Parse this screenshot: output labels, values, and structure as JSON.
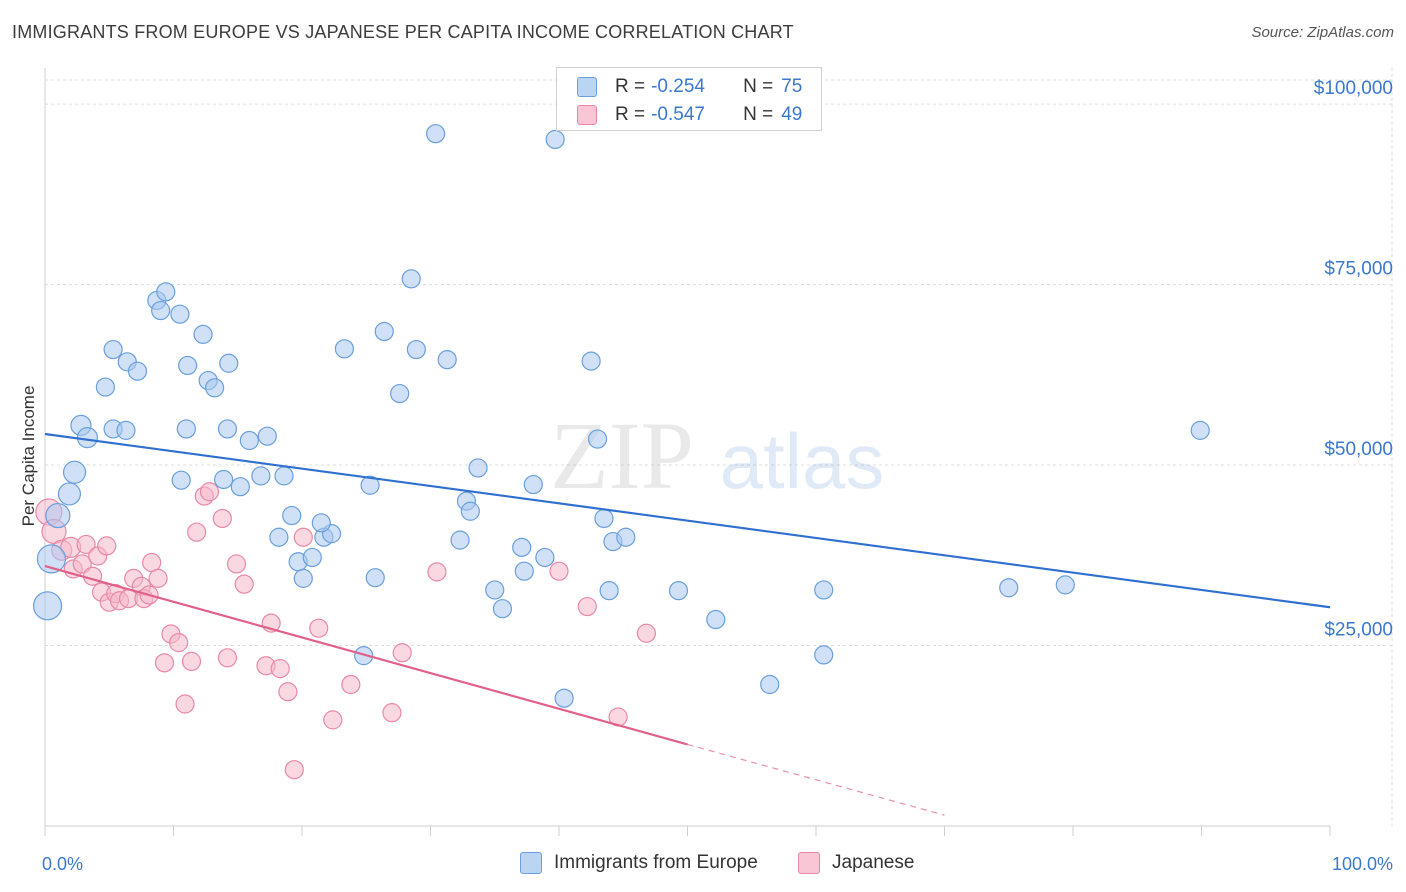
{
  "title": "IMMIGRANTS FROM EUROPE VS JAPANESE PER CAPITA INCOME CORRELATION CHART",
  "source": "Source: ZipAtlas.com",
  "watermark": {
    "zip": "ZIP",
    "atlas": "atlas"
  },
  "legend": {
    "r_label": "R =",
    "n_label": "N =",
    "rows": [
      {
        "r": "-0.254",
        "n": "75"
      },
      {
        "r": "-0.547",
        "n": "49"
      }
    ]
  },
  "colors": {
    "blue_fill": "#a9c8f0",
    "blue_stroke": "#6a9fdc",
    "blue_line": "#2f6fd0",
    "pink_fill": "#f6b8cb",
    "pink_stroke": "#e888a8",
    "pink_line": "#e0608a"
  },
  "chart_data": {
    "type": "scatter",
    "title": "IMMIGRANTS FROM EUROPE VS JAPANESE PER CAPITA INCOME CORRELATION CHART",
    "xlabel": "",
    "ylabel": "Per Capita Income",
    "xlim": [
      0,
      100
    ],
    "ylim": [
      0,
      105000
    ],
    "x_tick_labels": [
      "0.0%",
      "100.0%"
    ],
    "y_ticks": [
      25000,
      50000,
      75000,
      100000
    ],
    "y_tick_labels": [
      "$25,000",
      "$50,000",
      "$75,000",
      "$100,000"
    ],
    "grid": true,
    "legend_position": "top-center",
    "series": [
      {
        "name": "Immigrants from Europe",
        "color": "#6a9fdc",
        "trend": {
          "x": [
            0,
            100
          ],
          "y": [
            54300,
            30300
          ]
        },
        "points": [
          [
            0.2,
            30500,
            14
          ],
          [
            0.5,
            37000,
            14
          ],
          [
            1.0,
            43000,
            12
          ],
          [
            1.9,
            46000,
            11
          ],
          [
            2.3,
            49000,
            11
          ],
          [
            2.8,
            55500,
            10
          ],
          [
            3.3,
            53800,
            10
          ],
          [
            5.3,
            66000,
            9
          ],
          [
            4.7,
            60800,
            9
          ],
          [
            6.4,
            64300,
            9
          ],
          [
            7.2,
            63000,
            9
          ],
          [
            5.3,
            55000,
            9
          ],
          [
            6.3,
            54800,
            9
          ],
          [
            8.7,
            72800,
            9
          ],
          [
            9.4,
            74000,
            9
          ],
          [
            9.0,
            71400,
            9
          ],
          [
            10.5,
            70900,
            9
          ],
          [
            11.1,
            63800,
            9
          ],
          [
            11.0,
            55000,
            9
          ],
          [
            12.3,
            68100,
            9
          ],
          [
            12.7,
            61700,
            9
          ],
          [
            13.2,
            60700,
            9
          ],
          [
            14.2,
            55000,
            9
          ],
          [
            10.6,
            47900,
            9
          ],
          [
            13.9,
            48000,
            9
          ],
          [
            14.3,
            64100,
            9
          ],
          [
            15.2,
            47000,
            9
          ],
          [
            16.8,
            48500,
            9
          ],
          [
            17.3,
            54000,
            9
          ],
          [
            18.6,
            48500,
            9
          ],
          [
            15.9,
            53400,
            9
          ],
          [
            19.2,
            43000,
            9
          ],
          [
            19.7,
            36600,
            9
          ],
          [
            20.8,
            37200,
            9
          ],
          [
            18.2,
            40000,
            9
          ],
          [
            21.7,
            40000,
            9
          ],
          [
            22.3,
            40500,
            9
          ],
          [
            21.5,
            42000,
            9
          ],
          [
            20.1,
            34300,
            9
          ],
          [
            23.3,
            66100,
            9
          ],
          [
            25.3,
            47200,
            9
          ],
          [
            25.7,
            34400,
            9
          ],
          [
            26.4,
            68500,
            9
          ],
          [
            27.6,
            59900,
            9
          ],
          [
            28.5,
            75800,
            9
          ],
          [
            28.9,
            66000,
            9
          ],
          [
            30.4,
            95900,
            9
          ],
          [
            31.3,
            64600,
            9
          ],
          [
            32.3,
            39600,
            9
          ],
          [
            32.8,
            45000,
            9
          ],
          [
            33.1,
            43600,
            9
          ],
          [
            33.7,
            49600,
            9
          ],
          [
            35.0,
            32700,
            9
          ],
          [
            35.6,
            30100,
            9
          ],
          [
            37.1,
            38600,
            9
          ],
          [
            37.3,
            35300,
            9
          ],
          [
            38.0,
            47300,
            9
          ],
          [
            38.9,
            37200,
            9
          ],
          [
            39.7,
            95100,
            9
          ],
          [
            42.5,
            64400,
            9
          ],
          [
            43.0,
            53600,
            9
          ],
          [
            43.5,
            42600,
            9
          ],
          [
            43.9,
            32600,
            9
          ],
          [
            44.2,
            39400,
            9
          ],
          [
            45.2,
            40000,
            9
          ],
          [
            40.4,
            17700,
            9
          ],
          [
            49.3,
            32600,
            9
          ],
          [
            52.2,
            28600,
            9
          ],
          [
            56.4,
            19600,
            9
          ],
          [
            60.6,
            32700,
            9
          ],
          [
            60.6,
            23700,
            9
          ],
          [
            75.0,
            33000,
            9
          ],
          [
            79.4,
            33400,
            9
          ],
          [
            89.9,
            54800,
            9
          ],
          [
            24.8,
            23600,
            9
          ]
        ]
      },
      {
        "name": "Japanese",
        "color": "#e888a8",
        "trend": {
          "x": [
            0,
            50
          ],
          "y": [
            36000,
            11300
          ]
        },
        "trend_dashed": {
          "x": [
            50,
            70
          ],
          "y": [
            11300,
            1500
          ]
        },
        "points": [
          [
            0.3,
            43500,
            13
          ],
          [
            0.7,
            40800,
            12
          ],
          [
            1.3,
            38200,
            10
          ],
          [
            2.0,
            38600,
            10
          ],
          [
            2.2,
            35600,
            9
          ],
          [
            2.9,
            36300,
            9
          ],
          [
            3.2,
            39000,
            9
          ],
          [
            4.1,
            37400,
            9
          ],
          [
            3.7,
            34600,
            9
          ],
          [
            4.8,
            38800,
            9
          ],
          [
            4.4,
            32400,
            9
          ],
          [
            5.0,
            31000,
            9
          ],
          [
            5.5,
            32200,
            9
          ],
          [
            5.8,
            31200,
            9
          ],
          [
            6.5,
            31500,
            9
          ],
          [
            6.9,
            34300,
            9
          ],
          [
            7.5,
            33200,
            9
          ],
          [
            7.7,
            31500,
            9
          ],
          [
            8.1,
            32000,
            9
          ],
          [
            8.3,
            36500,
            9
          ],
          [
            8.8,
            34300,
            9
          ],
          [
            9.3,
            22600,
            9
          ],
          [
            9.8,
            26600,
            9
          ],
          [
            10.4,
            25400,
            9
          ],
          [
            10.9,
            16900,
            9
          ],
          [
            11.4,
            22800,
            9
          ],
          [
            11.8,
            40700,
            9
          ],
          [
            12.4,
            45700,
            9
          ],
          [
            12.8,
            46300,
            9
          ],
          [
            13.8,
            42600,
            9
          ],
          [
            14.2,
            23300,
            9
          ],
          [
            14.9,
            36300,
            9
          ],
          [
            15.5,
            33500,
            9
          ],
          [
            17.2,
            22200,
            9
          ],
          [
            17.6,
            28100,
            9
          ],
          [
            18.3,
            21800,
            9
          ],
          [
            18.9,
            18600,
            9
          ],
          [
            19.4,
            7800,
            9
          ],
          [
            20.1,
            40000,
            9
          ],
          [
            21.3,
            27400,
            9
          ],
          [
            22.4,
            14700,
            9
          ],
          [
            23.8,
            19600,
            9
          ],
          [
            27.0,
            15700,
            9
          ],
          [
            27.8,
            24000,
            9
          ],
          [
            30.5,
            35200,
            9
          ],
          [
            40.0,
            35300,
            9
          ],
          [
            42.2,
            30400,
            9
          ],
          [
            44.6,
            15100,
            9
          ],
          [
            46.8,
            26700,
            9
          ]
        ]
      }
    ]
  }
}
